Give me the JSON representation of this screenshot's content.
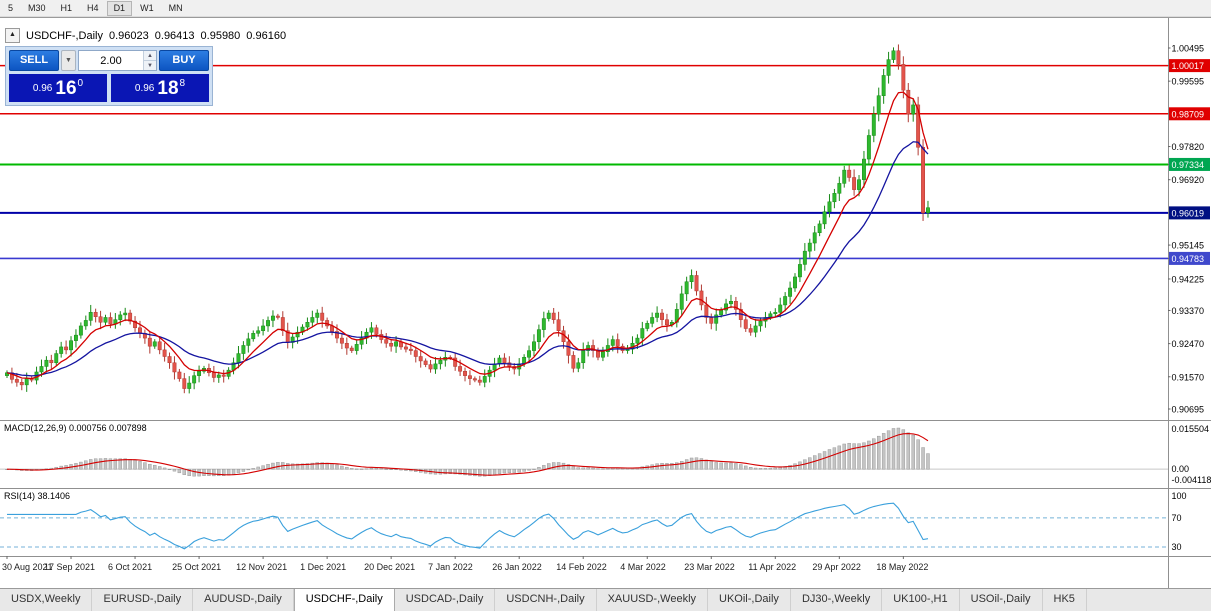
{
  "toolbar": {
    "timeframes": [
      {
        "label": "5",
        "active": false
      },
      {
        "label": "M30",
        "active": false
      },
      {
        "label": "H1",
        "active": false
      },
      {
        "label": "H4",
        "active": false
      },
      {
        "label": "D1",
        "active": true
      },
      {
        "label": "W1",
        "active": false
      },
      {
        "label": "MN",
        "active": false
      }
    ]
  },
  "chart_header": {
    "collapse_icon": "▲",
    "symbol": "USDCHF-,Daily",
    "open": "0.96023",
    "high": "0.96413",
    "low": "0.95980",
    "close": "0.96160"
  },
  "trade_panel": {
    "sell_label": "SELL",
    "buy_label": "BUY",
    "volume": "2.00",
    "sell_price": {
      "base": "0.96",
      "big": "16",
      "sup": "0"
    },
    "buy_price": {
      "base": "0.96",
      "big": "18",
      "sup": "8"
    }
  },
  "price_axis": [
    {
      "text": "1.00495",
      "bg": null
    },
    {
      "text": "1.00017",
      "bg": "#e00000"
    },
    {
      "text": "0.99595",
      "bg": null
    },
    {
      "text": "0.98709",
      "bg": "#e00000"
    },
    {
      "text": "0.97820",
      "bg": null
    },
    {
      "text": "0.97334",
      "bg": "#00a651"
    },
    {
      "text": "0.96920",
      "bg": null
    },
    {
      "text": "0.96019",
      "bg": "#000f82"
    },
    {
      "text": "0.95145",
      "bg": null
    },
    {
      "text": "0.94783",
      "bg": "#3f48cc"
    },
    {
      "text": "0.94225",
      "bg": null
    },
    {
      "text": "0.93370",
      "bg": null
    },
    {
      "text": "0.92470",
      "bg": null
    },
    {
      "text": "0.91570",
      "bg": null
    },
    {
      "text": "0.90695",
      "bg": null
    }
  ],
  "hlines": [
    {
      "price": 1.00017,
      "color": "#e00000",
      "w": 1.5
    },
    {
      "price": 0.98709,
      "color": "#e00000",
      "w": 1.5
    },
    {
      "price": 0.97334,
      "color": "#00b900",
      "w": 2
    },
    {
      "price": 0.96019,
      "color": "#0000a8",
      "w": 2
    },
    {
      "price": 0.94783,
      "color": "#3a3ad0",
      "w": 1.6
    }
  ],
  "macd_panel": {
    "label": "MACD(12,26,9) 0.000756 0.007898",
    "axis": [
      "0.015504",
      "0.00",
      "-0.004118"
    ]
  },
  "rsi_panel": {
    "label": "RSI(14) 38.1406",
    "axis": [
      "100",
      "70",
      "30"
    ],
    "levels": [
      70,
      30
    ]
  },
  "date_axis": [
    "30 Aug 2021",
    "17 Sep 2021",
    "6 Oct 2021",
    "25 Oct 2021",
    "12 Nov 2021",
    "1 Dec 2021",
    "20 Dec 2021",
    "7 Jan 2022",
    "26 Jan 2022",
    "14 Feb 2022",
    "4 Mar 2022",
    "23 Mar 2022",
    "11 Apr 2022",
    "29 Apr 2022",
    "18 May 2022"
  ],
  "tabs": [
    {
      "label": "USDX,Weekly",
      "active": false
    },
    {
      "label": "EURUSD-,Daily",
      "active": false
    },
    {
      "label": "AUDUSD-,Daily",
      "active": false
    },
    {
      "label": "USDCHF-,Daily",
      "active": true
    },
    {
      "label": "USDCAD-,Daily",
      "active": false
    },
    {
      "label": "USDCNH-,Daily",
      "active": false
    },
    {
      "label": "XAUUSD-,Weekly",
      "active": false
    },
    {
      "label": "UKOil-,Daily",
      "active": false
    },
    {
      "label": "DJ30-,Weekly",
      "active": false
    },
    {
      "label": "UK100-,H1",
      "active": false
    },
    {
      "label": "USOil-,Daily",
      "active": false
    },
    {
      "label": "HK5",
      "active": false
    }
  ],
  "colors": {
    "bull": "#2eb82e",
    "bull_dark": "#188a18",
    "bear": "#e3544b",
    "bear_dark": "#b03a32",
    "ma_fast": "#d40000",
    "ma_slow": "#1414a0",
    "macd_hist": "#c4c4c4",
    "macd_hist_border": "#8f8f8f",
    "macd_signal": "#d40000",
    "macd_zero": "#c8c8c8",
    "rsi_line": "#3aa0dc",
    "rsi_levels": "#74b2d8",
    "separator": "#909090",
    "axis_text": "#000000",
    "label_text": "#ffffff",
    "date_text": "#222222",
    "tick": "#666666"
  },
  "chart_data": {
    "type": "candlestick",
    "title": "USDCHF-,Daily",
    "ylim": [
      0.90695,
      1.00495
    ],
    "x_tick_labels": [
      "30 Aug 2021",
      "17 Sep 2021",
      "6 Oct 2021",
      "25 Oct 2021",
      "12 Nov 2021",
      "1 Dec 2021",
      "20 Dec 2021",
      "7 Jan 2022",
      "26 Jan 2022",
      "14 Feb 2022",
      "4 Mar 2022",
      "23 Mar 2022",
      "11 Apr 2022",
      "29 Apr 2022",
      "18 May 2022"
    ],
    "y_tick_labels": [
      1.00495,
      1.00017,
      0.99595,
      0.98709,
      0.9782,
      0.97334,
      0.9692,
      0.96019,
      0.95145,
      0.94783,
      0.94225,
      0.9337,
      0.9247,
      0.9157,
      0.90695
    ],
    "current_candle": {
      "open": 0.96023,
      "high": 0.96413,
      "low": 0.9598,
      "close": 0.9616
    },
    "horizontal_lines": [
      1.00017,
      0.98709,
      0.97334,
      0.96019,
      0.94783
    ],
    "closes": [
      0.9168,
      0.915,
      0.9142,
      0.9135,
      0.9152,
      0.9148,
      0.917,
      0.9185,
      0.9202,
      0.9195,
      0.922,
      0.9238,
      0.923,
      0.9255,
      0.927,
      0.9295,
      0.931,
      0.9332,
      0.932,
      0.9305,
      0.9318,
      0.93,
      0.9312,
      0.9325,
      0.933,
      0.9308,
      0.929,
      0.9275,
      0.9262,
      0.924,
      0.9252,
      0.923,
      0.9212,
      0.9195,
      0.917,
      0.9152,
      0.9125,
      0.914,
      0.916,
      0.9172,
      0.918,
      0.9168,
      0.9155,
      0.9162,
      0.9158,
      0.9175,
      0.9195,
      0.922,
      0.9242,
      0.926,
      0.9275,
      0.9282,
      0.9295,
      0.931,
      0.9322,
      0.9318,
      0.9282,
      0.925,
      0.9265,
      0.9278,
      0.9292,
      0.9305,
      0.9318,
      0.933,
      0.931,
      0.9295,
      0.928,
      0.9262,
      0.9248,
      0.9235,
      0.9228,
      0.9245,
      0.9262,
      0.9278,
      0.929,
      0.9272,
      0.9258,
      0.9248,
      0.924,
      0.9252,
      0.9238,
      0.9232,
      0.9228,
      0.9212,
      0.92,
      0.919,
      0.9178,
      0.9192,
      0.9202,
      0.921,
      0.9208,
      0.9185,
      0.9172,
      0.916,
      0.9152,
      0.9148,
      0.9142,
      0.9158,
      0.9175,
      0.9192,
      0.9208,
      0.9195,
      0.9185,
      0.9178,
      0.9192,
      0.921,
      0.9228,
      0.9252,
      0.9285,
      0.9315,
      0.933,
      0.9312,
      0.9282,
      0.9252,
      0.9215,
      0.918,
      0.9195,
      0.9228,
      0.9242,
      0.9228,
      0.921,
      0.9225,
      0.9242,
      0.9258,
      0.924,
      0.9228,
      0.9232,
      0.9248,
      0.9262,
      0.9288,
      0.9302,
      0.9318,
      0.933,
      0.9312,
      0.9298,
      0.9305,
      0.934,
      0.9382,
      0.9415,
      0.9432,
      0.939,
      0.9352,
      0.9318,
      0.9302,
      0.9325,
      0.9338,
      0.9355,
      0.9362,
      0.934,
      0.9312,
      0.9288,
      0.9278,
      0.9295,
      0.9308,
      0.9318,
      0.9328,
      0.9332,
      0.9352,
      0.9375,
      0.9398,
      0.9428,
      0.9462,
      0.9498,
      0.952,
      0.9548,
      0.9572,
      0.9605,
      0.9632,
      0.9655,
      0.9682,
      0.9718,
      0.9698,
      0.9665,
      0.9692,
      0.9748,
      0.9812,
      0.987,
      0.992,
      0.9975,
      1.0018,
      1.0042,
      1.0005,
      0.9935,
      0.987,
      0.9895,
      0.978,
      0.9602,
      0.9616
    ],
    "overlays": [
      {
        "name": "ma-fast",
        "type": "ema",
        "period": 8,
        "color": "#d40000"
      },
      {
        "name": "ma-slow",
        "type": "ema",
        "period": 21,
        "color": "#1414a0"
      }
    ],
    "indicators": [
      {
        "name": "MACD",
        "params": [
          12,
          26,
          9
        ],
        "current": [
          0.000756,
          0.007898
        ],
        "axis": [
          0.015504,
          0.0,
          -0.004118
        ]
      },
      {
        "name": "RSI",
        "params": [
          14
        ],
        "current": 38.1406,
        "levels": [
          70,
          30
        ],
        "axis": [
          100,
          70,
          30
        ]
      }
    ]
  }
}
